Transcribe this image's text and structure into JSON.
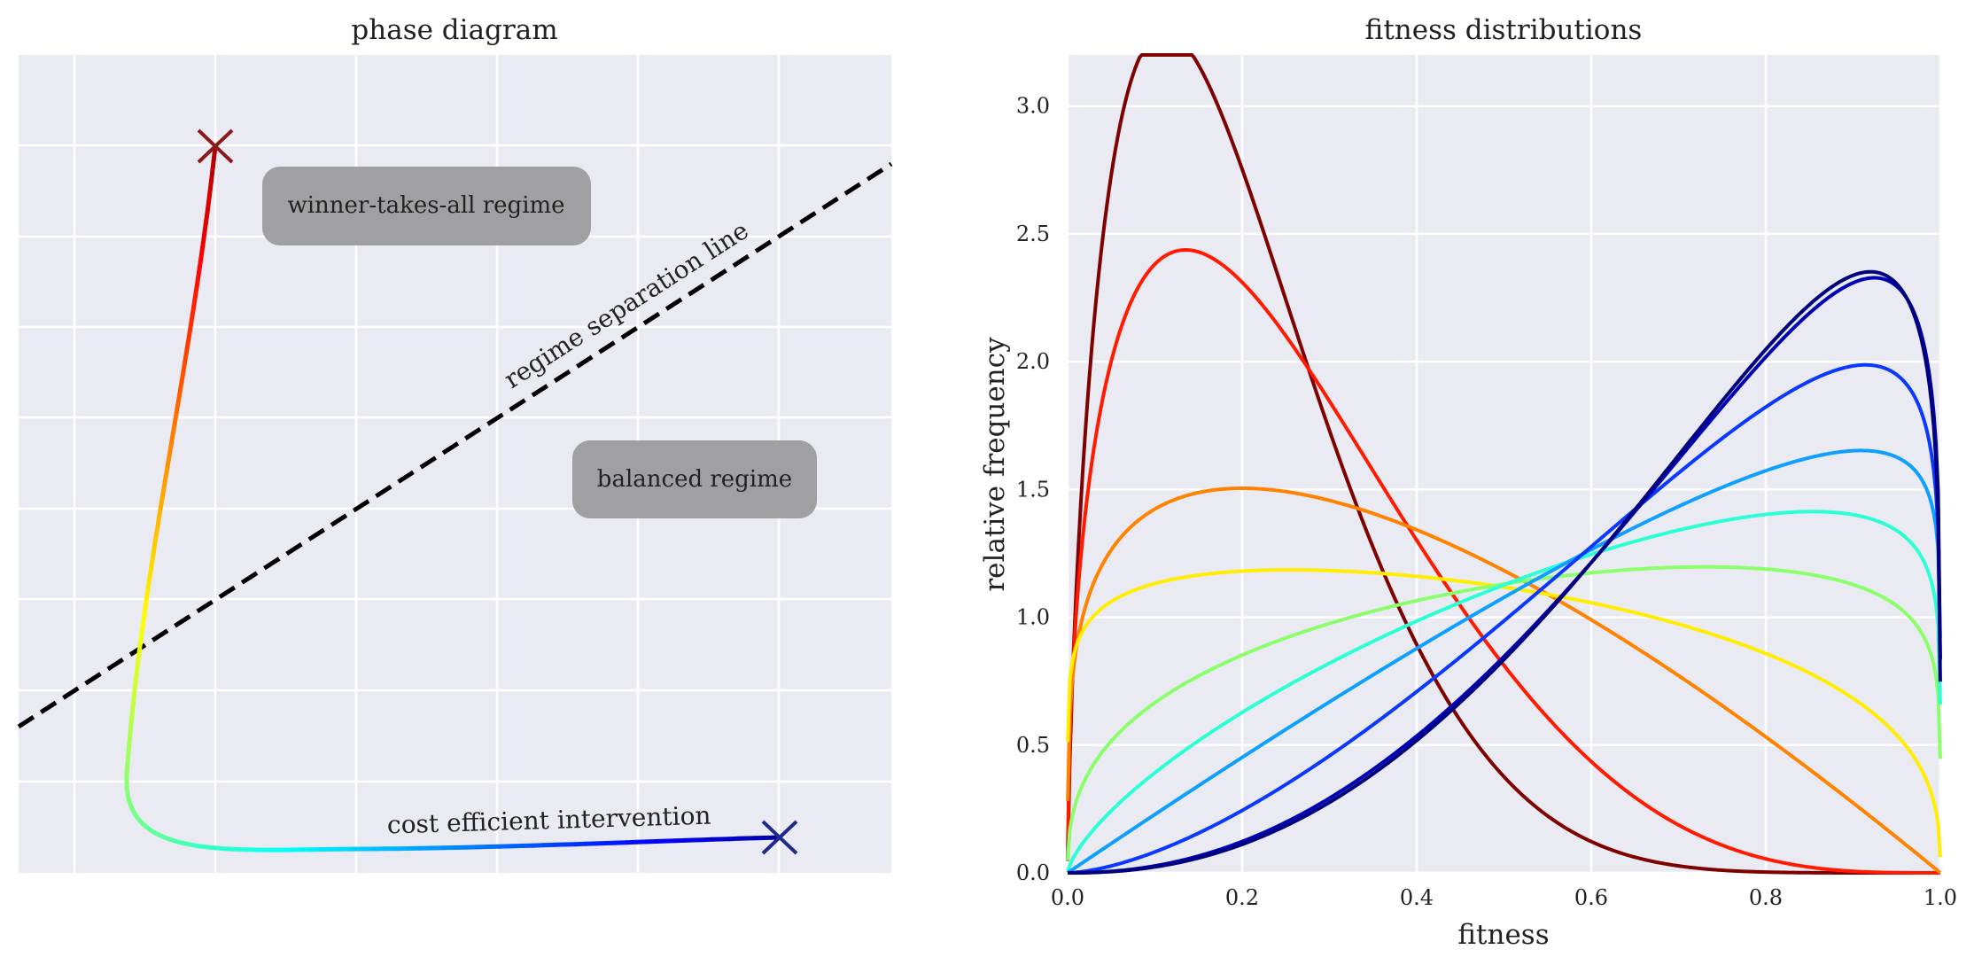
{
  "chart_data": [
    {
      "type": "line",
      "title": "phase diagram",
      "xlabel": "",
      "ylabel": "",
      "grid": true,
      "annotations": {
        "separation_label": "regime separation line",
        "path_label": "cost efficient intervention",
        "region_upper": "winner-takes-all regime",
        "region_lower": "balanced regime"
      },
      "markers": [
        {
          "name": "start",
          "color": "#8b1a1a",
          "symbol": "x"
        },
        {
          "name": "end",
          "color": "#1f2a8a",
          "symbol": "x"
        }
      ],
      "path_colormap": "jet"
    },
    {
      "type": "line",
      "title": "fitness distributions",
      "xlabel": "fitness",
      "ylabel": "relative frequency",
      "xlim": [
        0.0,
        1.0
      ],
      "ylim": [
        0.0,
        3.2
      ],
      "xticks": [
        "0.0",
        "0.2",
        "0.4",
        "0.6",
        "0.8",
        "1.0"
      ],
      "yticks": [
        "0.0",
        "0.5",
        "1.0",
        "1.5",
        "2.0",
        "2.5",
        "3.0"
      ],
      "grid": true,
      "series": [
        {
          "a": 1.7,
          "b": 6.6,
          "color": "#7f0000"
        },
        {
          "a": 1.5,
          "b": 4.2,
          "color": "#ff1a00"
        },
        {
          "a": 1.25,
          "b": 2.0,
          "color": "#ff8200"
        },
        {
          "a": 1.12,
          "b": 1.35,
          "color": "#ffee00"
        },
        {
          "a": 1.38,
          "b": 1.14,
          "color": "#8bff6b"
        },
        {
          "a": 1.7,
          "b": 1.12,
          "color": "#2affd5"
        },
        {
          "a": 2.0,
          "b": 1.1,
          "color": "#0fa0ff"
        },
        {
          "a": 2.6,
          "b": 1.15,
          "color": "#0a38ff"
        },
        {
          "a": 3.2,
          "b": 1.18,
          "color": "#0000b5"
        },
        {
          "a": 3.3,
          "b": 1.2,
          "color": "#00007f"
        }
      ]
    }
  ]
}
